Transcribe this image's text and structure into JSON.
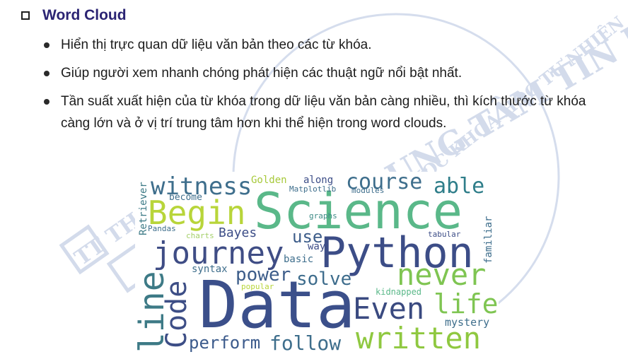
{
  "heading": {
    "title": "Word Cloud",
    "checkbox_icon": "square-outline-icon"
  },
  "bullets": [
    "Hiển thị trực quan dữ liệu văn bản theo các từ khóa.",
    "Giúp người xem nhanh chóng phát hiện các thuật ngữ nổi bật nhất.",
    "Tần suất xuất hiện của từ khóa trong dữ liệu văn bản càng nhiều, thì kích thước từ khóa càng lớn và ở vị trí trung tâm hơn khi thể hiện trong word clouds."
  ],
  "watermark": {
    "arc_text": "TRƯỜNG ĐẠI HỌC KHOA HỌC TỰ NHIÊN",
    "center_text": "TRUNG TÂM TIN HỌC",
    "logo_letters": "TT TH",
    "color": "#c9d3e6"
  },
  "word_cloud": {
    "words": [
      {
        "text": "Data",
        "color": "#3b4f8a"
      },
      {
        "text": "Science",
        "color": "#5ab889"
      },
      {
        "text": "Python",
        "color": "#3c4d87"
      },
      {
        "text": "Begin",
        "color": "#b8d53a"
      },
      {
        "text": "journey",
        "color": "#3f4d85"
      },
      {
        "text": "witness",
        "color": "#3e6e8c"
      },
      {
        "text": "course",
        "color": "#3e6e8c"
      },
      {
        "text": "able",
        "color": "#2f7e8a"
      },
      {
        "text": "never",
        "color": "#7fc552"
      },
      {
        "text": "life",
        "color": "#7fc552"
      },
      {
        "text": "Even",
        "color": "#3a4a80"
      },
      {
        "text": "written",
        "color": "#8fc840"
      },
      {
        "text": "follow",
        "color": "#3e6e8c"
      },
      {
        "text": "perform",
        "color": "#3c5b8c"
      },
      {
        "text": "Code",
        "color": "#3d4e86"
      },
      {
        "text": "line",
        "color": "#3d7a86"
      },
      {
        "text": "power",
        "color": "#3d5d8a"
      },
      {
        "text": "solve",
        "color": "#3d6c8c"
      },
      {
        "text": "use",
        "color": "#3d5d8a"
      },
      {
        "text": "Bayes",
        "color": "#3c4d87"
      },
      {
        "text": "Golden",
        "color": "#a7c93a"
      },
      {
        "text": "along",
        "color": "#3c4d87"
      },
      {
        "text": "Matplotlib",
        "color": "#3e6e8c"
      },
      {
        "text": "modules",
        "color": "#3e6e8c"
      },
      {
        "text": "become",
        "color": "#3e6e8c"
      },
      {
        "text": "graphs",
        "color": "#3d8a86"
      },
      {
        "text": "Pandas",
        "color": "#3e6e8c"
      },
      {
        "text": "charts",
        "color": "#a5d06a"
      },
      {
        "text": "way",
        "color": "#3c4d87"
      },
      {
        "text": "basic",
        "color": "#3e6e8c"
      },
      {
        "text": "syntax",
        "color": "#3e6e8c"
      },
      {
        "text": "popular",
        "color": "#b8d53a"
      },
      {
        "text": "kidnapped",
        "color": "#5ab889"
      },
      {
        "text": "mystery",
        "color": "#3e6e8c"
      },
      {
        "text": "tabular",
        "color": "#3c4d87"
      },
      {
        "text": "familiar",
        "color": "#3e6e8c"
      },
      {
        "text": "Retriever",
        "color": "#3d7a86"
      }
    ]
  }
}
